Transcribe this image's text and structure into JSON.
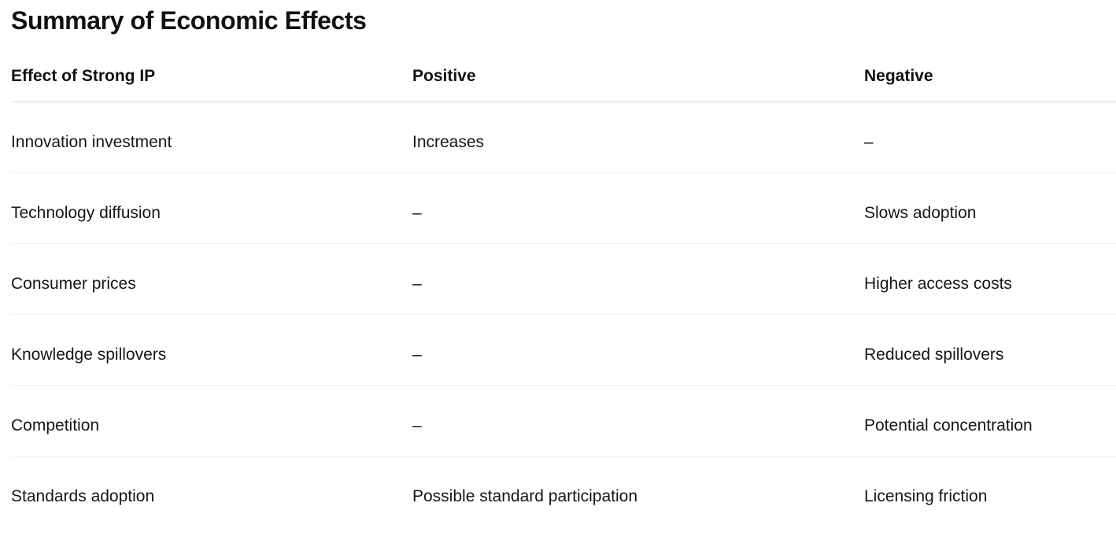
{
  "page": {
    "title": "Summary of Economic Effects"
  },
  "table": {
    "headers": {
      "effect": "Effect of Strong IP",
      "positive": "Positive",
      "negative": "Negative"
    },
    "rows": [
      {
        "effect": "Innovation investment",
        "positive": "Increases",
        "negative": "–"
      },
      {
        "effect": "Technology diffusion",
        "positive": "–",
        "negative": "Slows adoption"
      },
      {
        "effect": "Consumer prices",
        "positive": "–",
        "negative": "Higher access costs"
      },
      {
        "effect": "Knowledge spillovers",
        "positive": "–",
        "negative": "Reduced spillovers"
      },
      {
        "effect": "Competition",
        "positive": "–",
        "negative": "Potential concentration"
      },
      {
        "effect": "Standards adoption",
        "positive": "Possible standard participation",
        "negative": "Licensing friction"
      }
    ]
  },
  "colors": {
    "text": "#161616",
    "header_divider": "#d9d9d9",
    "row_divider": "#f0f0f0",
    "background": "#ffffff"
  }
}
